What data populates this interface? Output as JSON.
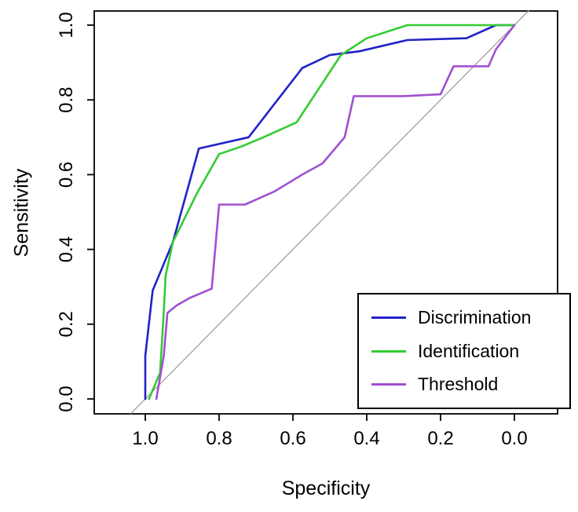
{
  "chart_data": {
    "type": "line",
    "title": "",
    "xlabel": "Specificity",
    "ylabel": "Sensitivity",
    "x_axis": {
      "ticks": [
        1.0,
        0.8,
        0.6,
        0.4,
        0.2,
        0.0
      ],
      "tick_labels": [
        "1.0",
        "0.8",
        "0.6",
        "0.4",
        "0.2",
        "0.0"
      ],
      "reversed": true
    },
    "y_axis": {
      "ticks": [
        0.0,
        0.2,
        0.4,
        0.6,
        0.8,
        1.0
      ],
      "tick_labels": [
        "0.0",
        "0.2",
        "0.4",
        "0.6",
        "0.8",
        "1.0"
      ]
    },
    "grid": false,
    "legend_position": "bottomright",
    "reference_line": {
      "name": "chance-diagonal",
      "color": "#9a9a9a",
      "from": {
        "specificity": 1.04,
        "sensitivity": -0.04
      },
      "to": {
        "specificity": -0.04,
        "sensitivity": 1.04
      }
    },
    "series": [
      {
        "name": "Discrimination",
        "color": "#2222c8",
        "points": [
          [
            1.0,
            0.0
          ],
          [
            1.0,
            0.115
          ],
          [
            0.98,
            0.29
          ],
          [
            0.925,
            0.42
          ],
          [
            0.855,
            0.67
          ],
          [
            0.72,
            0.7
          ],
          [
            0.575,
            0.885
          ],
          [
            0.5,
            0.92
          ],
          [
            0.42,
            0.93
          ],
          [
            0.29,
            0.96
          ],
          [
            0.13,
            0.965
          ],
          [
            0.05,
            1.0
          ],
          [
            0.0,
            1.0
          ]
        ]
      },
      {
        "name": "Identification",
        "color": "#33cc33",
        "points": [
          [
            0.99,
            0.0
          ],
          [
            0.96,
            0.07
          ],
          [
            0.95,
            0.23
          ],
          [
            0.945,
            0.33
          ],
          [
            0.925,
            0.42
          ],
          [
            0.86,
            0.55
          ],
          [
            0.8,
            0.655
          ],
          [
            0.74,
            0.675
          ],
          [
            0.68,
            0.7
          ],
          [
            0.59,
            0.74
          ],
          [
            0.47,
            0.92
          ],
          [
            0.4,
            0.965
          ],
          [
            0.29,
            1.0
          ],
          [
            0.0,
            1.0
          ]
        ]
      },
      {
        "name": "Threshold",
        "color": "#a050d0",
        "points": [
          [
            0.97,
            0.0
          ],
          [
            0.95,
            0.115
          ],
          [
            0.94,
            0.23
          ],
          [
            0.915,
            0.25
          ],
          [
            0.88,
            0.27
          ],
          [
            0.82,
            0.295
          ],
          [
            0.8,
            0.52
          ],
          [
            0.73,
            0.52
          ],
          [
            0.65,
            0.555
          ],
          [
            0.575,
            0.6
          ],
          [
            0.52,
            0.63
          ],
          [
            0.46,
            0.7
          ],
          [
            0.435,
            0.81
          ],
          [
            0.3,
            0.81
          ],
          [
            0.2,
            0.815
          ],
          [
            0.165,
            0.89
          ],
          [
            0.07,
            0.89
          ],
          [
            0.05,
            0.935
          ],
          [
            0.0,
            1.0
          ]
        ]
      }
    ]
  }
}
